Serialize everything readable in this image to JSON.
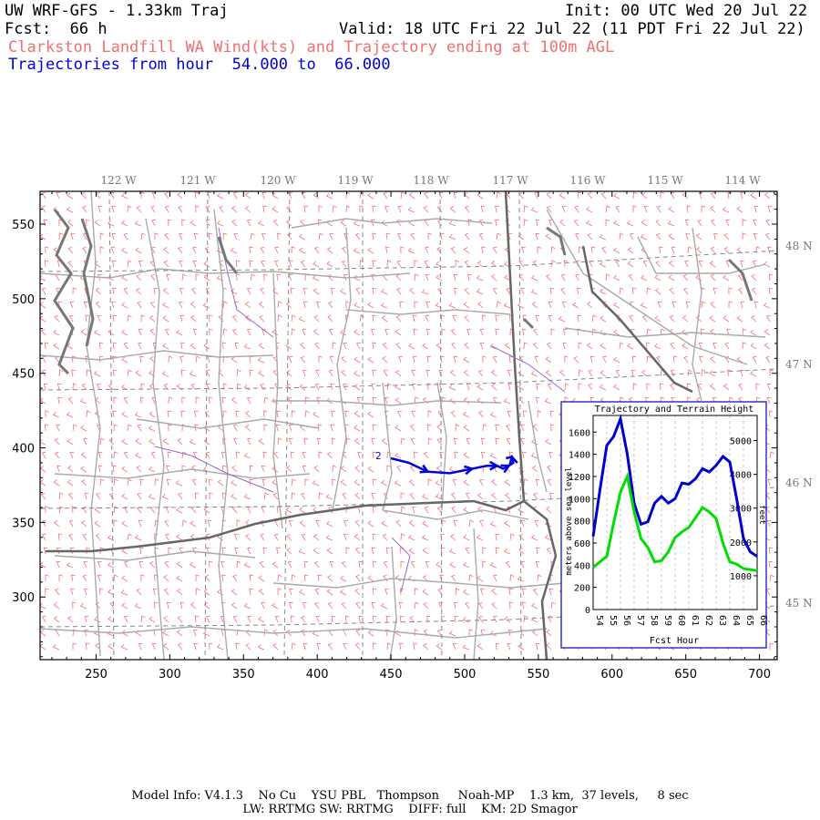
{
  "header": {
    "title": "UW WRF-GFS - 1.33km Traj",
    "init": "Init: 00 UTC Wed 20 Jul 22",
    "fcst_label": "Fcst:",
    "fcst_value": "66 h",
    "valid": "Valid: 18 UTC Fri 22 Jul 22 (11 PDT Fri 22 Jul 22)",
    "subtitle": "Clarkston Landfill WA Wind(kts) and Trajectory ending at 100m AGL",
    "traj_hours": "Trajectories from hour  54.000 to  66.000"
  },
  "map": {
    "lon_labels": [
      "122 W",
      "121 W",
      "120 W",
      "119 W",
      "118 W",
      "117 W",
      "116 W",
      "115 W",
      "114 W"
    ],
    "lat_labels": [
      "48 N",
      "47 N",
      "46 N",
      "45 N"
    ],
    "x_ticks": [
      "250",
      "300",
      "350",
      "400",
      "450",
      "500",
      "550",
      "600",
      "650",
      "700"
    ],
    "y_ticks": [
      "550",
      "500",
      "450",
      "400",
      "350",
      "300"
    ],
    "x_range": [
      212,
      712
    ],
    "y_range": [
      258,
      572
    ],
    "trajectory_label": "2",
    "trajectory_color": "#0000dd",
    "wind_barb_color": "#f07070",
    "county_color": "#aaaaaa",
    "state_border_color": "#666666",
    "trajectory_points": [
      [
        450,
        393
      ],
      [
        462,
        390
      ],
      [
        475,
        384
      ],
      [
        490,
        383
      ],
      [
        505,
        386
      ],
      [
        515,
        388
      ],
      [
        522,
        388
      ],
      [
        526,
        386
      ],
      [
        530,
        388
      ],
      [
        533,
        390
      ],
      [
        532,
        394
      ],
      [
        528,
        393
      ]
    ]
  },
  "inset": {
    "title": "Trajectory and Terrain Height",
    "xlabel": "Fcst Hour",
    "ylabel_left": "meters above sea level",
    "ylabel_right": "feet",
    "left_ticks": [
      "0",
      "200",
      "400",
      "600",
      "800",
      "1000",
      "1200",
      "1400",
      "1600"
    ],
    "right_ticks": [
      "1000",
      "2000",
      "3000",
      "4000",
      "5000"
    ],
    "hour_ticks": [
      "54",
      "55",
      "56",
      "57",
      "58",
      "59",
      "60",
      "61",
      "62",
      "63",
      "64",
      "65",
      "66"
    ]
  },
  "chart_data": {
    "type": "line",
    "title": "Trajectory and Terrain Height",
    "xlabel": "Fcst Hour",
    "ylabel": "meters above sea level",
    "xlim": [
      54,
      66
    ],
    "ylim": [
      0,
      1750
    ],
    "grid": true,
    "x": [
      54,
      54.5,
      55,
      55.5,
      56,
      56.5,
      57,
      57.5,
      58,
      58.5,
      59,
      59.5,
      60,
      60.5,
      61,
      61.5,
      62,
      62.5,
      63,
      63.5,
      64,
      64.5,
      65,
      65.5,
      66
    ],
    "series": [
      {
        "color": "#0000cc",
        "values": [
          660,
          1080,
          1480,
          1560,
          1720,
          1400,
          960,
          770,
          790,
          960,
          1020,
          960,
          1000,
          1140,
          1130,
          1180,
          1270,
          1240,
          1300,
          1380,
          1330,
          1000,
          640,
          520,
          480
        ]
      },
      {
        "color": "#00dd00",
        "values": [
          380,
          430,
          480,
          780,
          1060,
          1200,
          880,
          640,
          560,
          430,
          440,
          520,
          650,
          700,
          740,
          830,
          920,
          880,
          820,
          600,
          430,
          410,
          370,
          360,
          350
        ]
      }
    ]
  },
  "footer": {
    "line1": "Model Info: V4.1.3    No Cu    YSU PBL   Thompson     Noah-MP    1.3 km,  37 levels,     8 sec",
    "line2": "LW: RRTMG SW: RRTMG    DIFF: full    KM: 2D Smagor"
  }
}
